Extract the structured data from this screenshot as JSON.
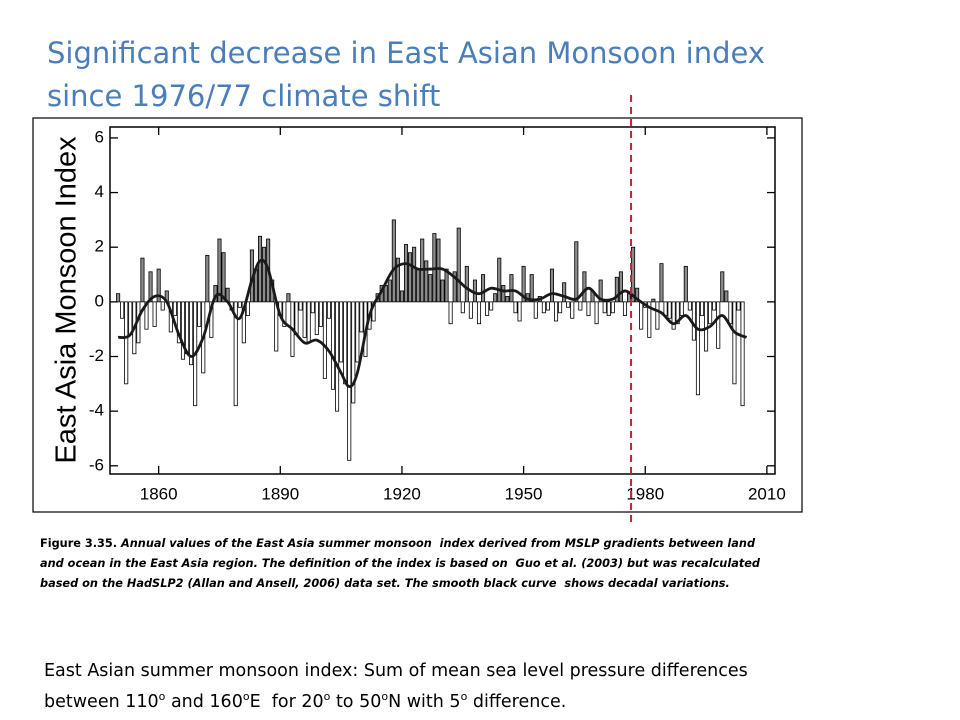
{
  "title_lines": [
    "Significant decrease in East Asian Monsoon index",
    "since 1976/77 climate shift"
  ],
  "chart_data": {
    "type": "bar",
    "ylabel": "East Asia Monsoon Index",
    "x": [
      1850,
      1851,
      1852,
      1853,
      1854,
      1855,
      1856,
      1857,
      1858,
      1859,
      1860,
      1861,
      1862,
      1863,
      1864,
      1865,
      1866,
      1867,
      1868,
      1869,
      1870,
      1871,
      1872,
      1873,
      1874,
      1875,
      1876,
      1877,
      1878,
      1879,
      1880,
      1881,
      1882,
      1883,
      1884,
      1885,
      1886,
      1887,
      1888,
      1889,
      1890,
      1891,
      1892,
      1893,
      1894,
      1895,
      1896,
      1897,
      1898,
      1899,
      1900,
      1901,
      1902,
      1903,
      1904,
      1905,
      1906,
      1907,
      1908,
      1909,
      1910,
      1911,
      1912,
      1913,
      1914,
      1915,
      1916,
      1917,
      1918,
      1919,
      1920,
      1921,
      1922,
      1923,
      1924,
      1925,
      1926,
      1927,
      1928,
      1929,
      1930,
      1931,
      1932,
      1933,
      1934,
      1935,
      1936,
      1937,
      1938,
      1939,
      1940,
      1941,
      1942,
      1943,
      1944,
      1945,
      1946,
      1947,
      1948,
      1949,
      1950,
      1951,
      1952,
      1953,
      1954,
      1955,
      1956,
      1957,
      1958,
      1959,
      1960,
      1961,
      1962,
      1963,
      1964,
      1965,
      1966,
      1967,
      1968,
      1969,
      1970,
      1971,
      1972,
      1973,
      1974,
      1975,
      1976,
      1977,
      1978,
      1979,
      1980,
      1981,
      1982,
      1983,
      1984,
      1985,
      1986,
      1987,
      1988,
      1989,
      1990,
      1991,
      1992,
      1993,
      1994,
      1995,
      1996,
      1997,
      1998,
      1999,
      2000,
      2001,
      2002,
      2003,
      2004
    ],
    "values": [
      0.3,
      -0.6,
      -3.0,
      -1.2,
      -1.9,
      -1.5,
      1.6,
      -1.0,
      1.1,
      -0.9,
      1.2,
      -0.3,
      0.4,
      -1.1,
      -0.5,
      -1.5,
      -2.1,
      -1.9,
      -2.3,
      -3.8,
      -0.9,
      -2.6,
      1.7,
      -1.3,
      0.6,
      2.3,
      1.8,
      0.5,
      -0.3,
      -3.8,
      -0.2,
      -1.5,
      -0.5,
      1.9,
      1.2,
      2.4,
      2.0,
      2.3,
      0.8,
      -1.8,
      -0.5,
      -0.9,
      0.3,
      -2.0,
      -1.2,
      -0.3,
      -1.3,
      -1.5,
      -0.4,
      -1.2,
      -0.9,
      -2.8,
      -0.6,
      -3.2,
      -4.0,
      -2.2,
      -3.0,
      -5.8,
      -3.7,
      -2.2,
      -1.1,
      -2.0,
      -1.0,
      -0.7,
      0.3,
      0.6,
      0.6,
      0.8,
      3.0,
      1.6,
      0.4,
      2.1,
      1.8,
      2.0,
      1.2,
      2.3,
      1.5,
      1.0,
      2.5,
      2.3,
      0.8,
      1.2,
      -0.8,
      1.1,
      2.7,
      -0.4,
      1.3,
      -0.6,
      0.8,
      -0.8,
      1.0,
      -0.5,
      -0.3,
      0.3,
      1.6,
      0.6,
      0.2,
      1.0,
      -0.4,
      -0.7,
      1.3,
      0.3,
      1.0,
      -0.6,
      0.2,
      -0.4,
      -0.3,
      1.2,
      -0.7,
      -0.4,
      0.7,
      -0.2,
      -0.6,
      2.2,
      -0.3,
      1.1,
      -0.5,
      0.4,
      -0.8,
      0.8,
      -0.4,
      -0.5,
      -0.4,
      0.9,
      1.1,
      -0.5,
      0.3,
      2.0,
      0.5,
      -1.0,
      -0.2,
      -1.3,
      0.1,
      -1.0,
      1.4,
      -0.5,
      -0.6,
      -1.0,
      -0.8,
      -0.5,
      1.3,
      -0.3,
      -1.4,
      -3.4,
      -0.5,
      -1.8,
      -0.8,
      -0.3,
      -1.7,
      1.1,
      0.4,
      -0.8,
      -3.0,
      -0.3,
      -3.8
    ],
    "positive_color": "#8c8c8c",
    "negative_color": "#ffffff",
    "curve": {
      "color": "#1a1a1a",
      "x": [
        1850,
        1853,
        1856,
        1859,
        1862,
        1865,
        1868,
        1871,
        1874,
        1877,
        1880,
        1883,
        1885,
        1887,
        1890,
        1893,
        1896,
        1899,
        1902,
        1905,
        1907,
        1909,
        1912,
        1915,
        1918,
        1921,
        1924,
        1927,
        1930,
        1933,
        1936,
        1939,
        1942,
        1945,
        1948,
        1951,
        1954,
        1957,
        1960,
        1963,
        1966,
        1969,
        1972,
        1975,
        1978,
        1981,
        1984,
        1987,
        1990,
        1993,
        1996,
        1999,
        2002,
        2005
      ],
      "values": [
        -1.3,
        -1.2,
        -0.3,
        0.2,
        0.0,
        -1.2,
        -2.0,
        -1.3,
        0.2,
        0.0,
        -0.6,
        0.8,
        1.5,
        1.2,
        -0.5,
        -1.0,
        -1.5,
        -1.4,
        -1.8,
        -2.6,
        -3.1,
        -2.6,
        -0.5,
        0.4,
        1.2,
        1.4,
        1.2,
        1.2,
        1.2,
        0.9,
        0.5,
        0.3,
        0.5,
        0.4,
        0.4,
        0.1,
        0.1,
        0.3,
        0.2,
        0.1,
        0.5,
        0.1,
        0.1,
        0.4,
        0.1,
        -0.2,
        -0.4,
        -0.8,
        -0.5,
        -1.0,
        -0.9,
        -0.5,
        -1.1,
        -1.3
      ]
    },
    "shift_line": {
      "x": 1976.5,
      "color": "#c0272d"
    },
    "xlim": [
      1848,
      2012
    ],
    "xticks": [
      1860,
      1890,
      1920,
      1950,
      1980,
      2010
    ],
    "ylim": [
      -6.3,
      6.4
    ],
    "yticks": [
      -6,
      -4,
      -2,
      0,
      2,
      4,
      6
    ]
  },
  "caption": {
    "label": "Figure 3.35.",
    "lines": [
      " Annual values of the East Asia summer monsoon  index derived from MSLP gradients between land",
      "and ocean in the East Asia region. The definition of the index is based on  Guo et al. (2003) but was recalculated",
      "based on the HadSLP2 (Allan and Ansell, 2006) data set. The smooth black curve  shows decadal variations."
    ]
  },
  "footer": {
    "line1": "East Asian summer monsoon index: Sum of mean sea level pressure differences",
    "line2": [
      "between 110",
      "o",
      " and 160",
      "o",
      "E  for 20",
      "o",
      " to 50",
      "o",
      "N with 5",
      "o",
      " difference."
    ]
  }
}
